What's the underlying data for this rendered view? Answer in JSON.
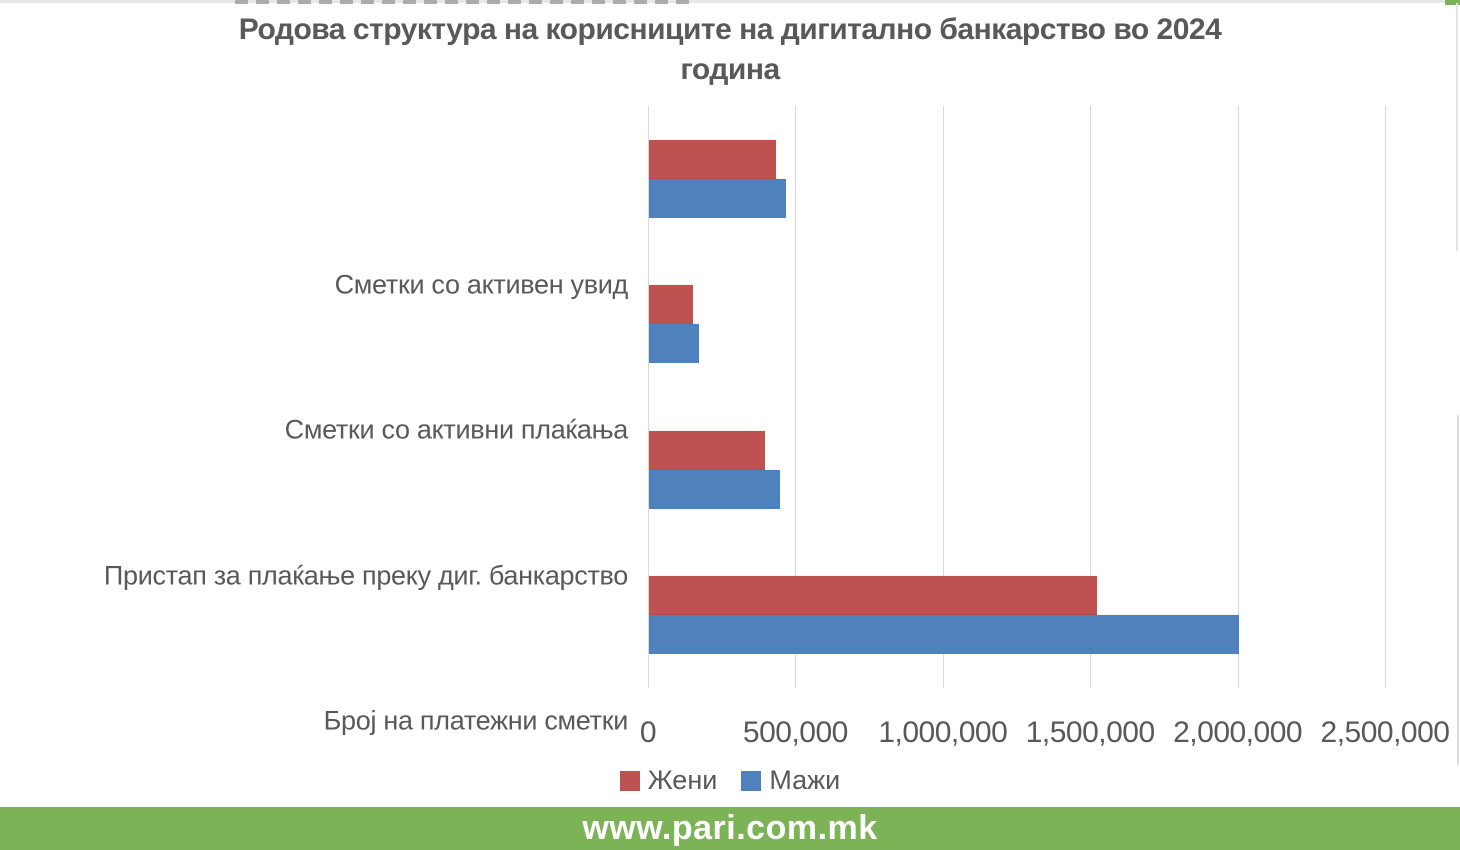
{
  "title": {
    "lines": [
      "Родова структура на корисниците на дигитално банкарство во 2024",
      "година"
    ]
  },
  "chart_data": {
    "type": "bar",
    "orientation": "horizontal",
    "title": "Родова структура на корисниците на дигитално банкарство во 2024 година",
    "categories": [
      "Сметки со активен увид",
      "Сметки со активни плаќања",
      "Пристап за плаќање преку диг. банкарство",
      "Број на платежни сметки"
    ],
    "series": [
      {
        "name": "Жени",
        "color": "#be5250",
        "values": [
          430000,
          150000,
          395000,
          1520000
        ]
      },
      {
        "name": "Мажи",
        "color": "#4f81bd",
        "values": [
          465000,
          170000,
          445000,
          2000000
        ]
      }
    ],
    "x_ticks": [
      "0",
      "500,000",
      "1,000,000",
      "1,500,000",
      "2,000,000",
      "2,500,000"
    ],
    "xlim": [
      0,
      2500000
    ],
    "grid": "vertical-only",
    "legend_position": "bottom"
  },
  "legend": {
    "items": [
      {
        "label": "Жени",
        "color": "#be5250"
      },
      {
        "label": "Мажи",
        "color": "#4f81bd"
      }
    ]
  },
  "footer": {
    "url": "www.pari.com.mk",
    "background": "#7db357"
  },
  "colors": {
    "series_women": "#be5250",
    "series_men": "#4f81bd",
    "text": "#595959",
    "gridline": "#d9d9d9",
    "footer_green": "#7db357",
    "edge_gray": "#e3e3e3"
  }
}
